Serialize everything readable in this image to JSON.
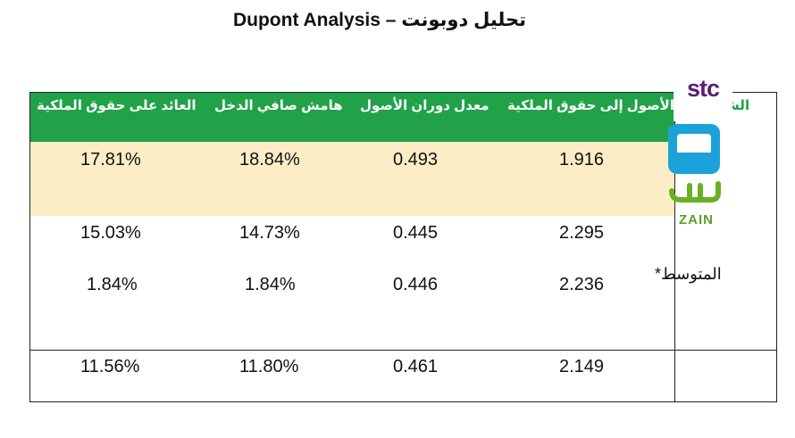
{
  "title": "Dupont Analysis – تحليل دوبونت",
  "headers": {
    "company": "الشركة",
    "equity_multiplier": "الأصول إلى حقوق الملكية",
    "asset_turnover": "معدل دوران الأصول",
    "net_margin": "هامش صافي الدخل",
    "roe": "العائد على حقوق الملكية"
  },
  "rows": [
    {
      "company": "stc",
      "equity_multiplier": "1.916",
      "asset_turnover": "0.493",
      "net_margin": "18.84%",
      "roe": "17.81%"
    },
    {
      "company": "zain",
      "equity_multiplier": "2.295",
      "asset_turnover": "0.445",
      "net_margin": "14.73%",
      "roe": "15.03%"
    },
    {
      "company": "zain",
      "equity_multiplier": "2.236",
      "asset_turnover": "0.446",
      "net_margin": "1.84%",
      "roe": "1.84%"
    },
    {
      "company": "المتوسط*",
      "equity_multiplier": "2.149",
      "asset_turnover": "0.461",
      "net_margin": "11.80%",
      "roe": "11.56%"
    }
  ],
  "logos": {
    "stc": "stc",
    "zain": "zain",
    "stc_color": "#5a1f73",
    "zain_color": "#1ba3d9",
    "zain_green": "#6ab023"
  },
  "colors": {
    "header_bg": "#21a249",
    "highlight_row": "#fdedc6"
  }
}
